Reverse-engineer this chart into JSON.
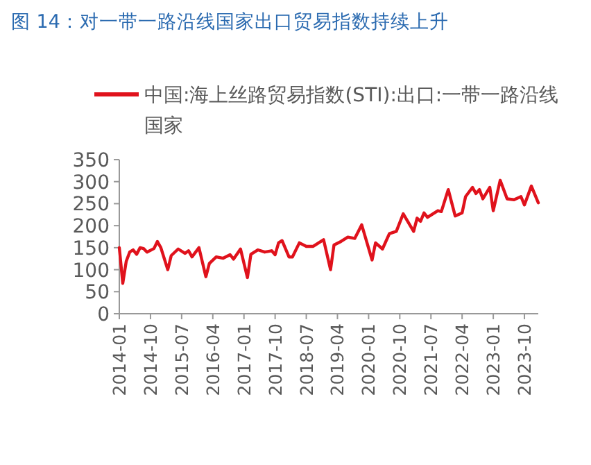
{
  "chart_data": {
    "type": "line",
    "title": "图 14：对一带一路沿线国家出口贸易指数持续上升",
    "legend": "top",
    "x": [
      "2014-01",
      "2014-02",
      "2014-03",
      "2014-04",
      "2014-05",
      "2014-06",
      "2014-07",
      "2014-08",
      "2014-09",
      "2014-11",
      "2014-12",
      "2015-01",
      "2015-03",
      "2015-04",
      "2015-06",
      "2015-08",
      "2015-09",
      "2015-10",
      "2015-12",
      "2016-02",
      "2016-03",
      "2016-05",
      "2016-07",
      "2016-09",
      "2016-10",
      "2016-12",
      "2017-02",
      "2017-03",
      "2017-05",
      "2017-07",
      "2017-09",
      "2017-10",
      "2017-11",
      "2017-12",
      "2018-02",
      "2018-03",
      "2018-05",
      "2018-07",
      "2018-09",
      "2018-12",
      "2019-02",
      "2019-03",
      "2019-05",
      "2019-07",
      "2019-09",
      "2019-11",
      "2020-02",
      "2020-03",
      "2020-05",
      "2020-07",
      "2020-09",
      "2020-11",
      "2021-02",
      "2021-03",
      "2021-04",
      "2021-05",
      "2021-06",
      "2021-09",
      "2021-10",
      "2021-12",
      "2022-02",
      "2022-04",
      "2022-05",
      "2022-07",
      "2022-08",
      "2022-09",
      "2022-10",
      "2022-12",
      "2023-01",
      "2023-03",
      "2023-05",
      "2023-07",
      "2023-09",
      "2023-10",
      "2023-12",
      "2024-02"
    ],
    "series": [
      {
        "name": "中国:海上丝路贸易指数(STI):出口:一带一路沿线国家",
        "color": "#e0121c",
        "values": [
          150,
          69,
          119,
          140,
          145,
          135,
          150,
          148,
          140,
          148,
          164,
          150,
          100,
          132,
          147,
          137,
          143,
          129,
          150,
          84,
          114,
          129,
          126,
          134,
          124,
          147,
          82,
          135,
          145,
          140,
          143,
          134,
          161,
          166,
          129,
          129,
          161,
          153,
          153,
          168,
          100,
          156,
          164,
          174,
          171,
          202,
          122,
          161,
          147,
          182,
          187,
          227,
          187,
          217,
          210,
          229,
          219,
          234,
          232,
          282,
          222,
          229,
          266,
          287,
          273,
          282,
          261,
          287,
          234,
          303,
          261,
          259,
          266,
          247,
          290,
          252
        ]
      }
    ],
    "xlim": [
      "2014-01",
      "2024-02"
    ],
    "xticks": [
      "2014-01",
      "2014-10",
      "2015-07",
      "2016-04",
      "2017-01",
      "2017-10",
      "2018-07",
      "2019-04",
      "2020-01",
      "2020-10",
      "2021-07",
      "2022-04",
      "2023-01",
      "2023-10"
    ],
    "ylim": [
      0,
      350
    ],
    "yticks": [
      0,
      50,
      100,
      150,
      200,
      250,
      300,
      350
    ]
  }
}
